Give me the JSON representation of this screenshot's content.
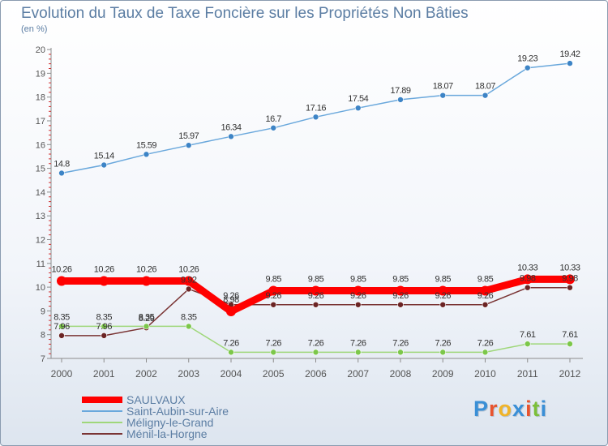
{
  "title": "Evolution du Taux de Taxe Foncière sur les Propriétés Non Bâties",
  "unit_label": "(en %)",
  "logo": {
    "letters": [
      "P",
      "r",
      "o",
      "x",
      "i",
      "t",
      "i"
    ],
    "colors": [
      "#3a8fd6",
      "#e8542f",
      "#f0b429",
      "#3a8fd6",
      "#e8542f",
      "#7cbf3a",
      "#3a8fd6"
    ]
  },
  "chart_data": {
    "type": "line",
    "title": "Evolution du Taux de Taxe Foncière sur les Propriétés Non Bâties",
    "ylabel": "(en %)",
    "xlabel": "",
    "x": [
      "2000",
      "2001",
      "2002",
      "2003",
      "2004",
      "2005",
      "2006",
      "2007",
      "2008",
      "2009",
      "2010",
      "2011",
      "2012"
    ],
    "ylim": [
      7,
      20
    ],
    "yticks": [
      "7",
      "8",
      "9",
      "10",
      "11",
      "12",
      "13",
      "14",
      "15",
      "16",
      "17",
      "18",
      "19",
      "20"
    ],
    "grid": false,
    "legend_position": "bottom-left",
    "series": [
      {
        "name": "SAULVAUX",
        "color": "#ff0000",
        "values": [
          10.26,
          10.26,
          10.26,
          10.26,
          8.98,
          9.85,
          9.85,
          9.85,
          9.85,
          9.85,
          9.85,
          10.33,
          10.33
        ],
        "labels": [
          "10.26",
          "10.26",
          "10.26",
          "10.26",
          "8.98",
          "9.85",
          "9.85",
          "9.85",
          "9.85",
          "9.85",
          "9.85",
          "10.33",
          "10.33"
        ]
      },
      {
        "name": "Saint-Aubin-sur-Aire",
        "color": "#6aa8dc",
        "values": [
          14.8,
          15.14,
          15.59,
          15.97,
          16.34,
          16.7,
          17.16,
          17.54,
          17.89,
          18.07,
          18.07,
          19.23,
          19.42
        ],
        "labels": [
          "14.8",
          "15.14",
          "15.59",
          "15.97",
          "16.34",
          "16.7",
          "17.16",
          "17.54",
          "17.89",
          "18.07",
          "18.07",
          "19.23",
          "19.42"
        ]
      },
      {
        "name": "Méligny-le-Grand",
        "color": "#9fd77a",
        "values": [
          8.35,
          8.35,
          8.35,
          8.35,
          7.26,
          7.26,
          7.26,
          7.26,
          7.26,
          7.26,
          7.26,
          7.61,
          7.61
        ],
        "labels": [
          "8.35",
          "8.35",
          "8.35",
          "8.35",
          "7.26",
          "7.26",
          "7.26",
          "7.26",
          "7.26",
          "7.26",
          "7.26",
          "7.61",
          "7.61"
        ]
      },
      {
        "name": "Ménil-la-Horgne",
        "color": "#7a3434",
        "values": [
          7.96,
          7.96,
          8.29,
          9.92,
          9.26,
          9.26,
          9.26,
          9.26,
          9.26,
          9.26,
          9.26,
          9.98,
          9.98
        ],
        "labels": [
          "7.96",
          "7.96",
          "8.29",
          "9.92",
          "9.26",
          "9.26",
          "9.26",
          "9.26",
          "9.26",
          "9.26",
          "9.26",
          "9.98",
          "9.98"
        ]
      }
    ]
  }
}
